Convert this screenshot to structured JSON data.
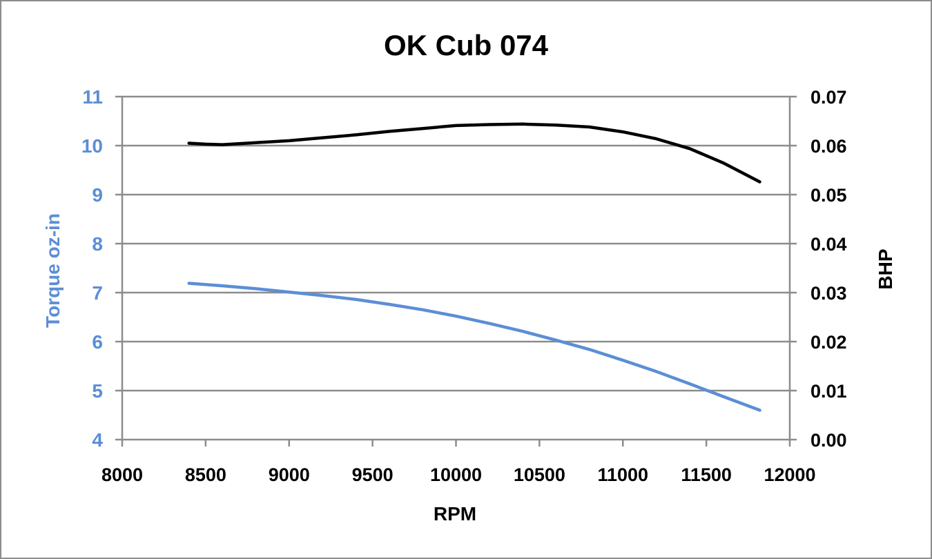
{
  "chart_data": {
    "type": "line",
    "title": "OK Cub 074",
    "xlabel": "RPM",
    "ylabel_left": "Torque oz-in",
    "ylabel_right": "BHP",
    "xlim": [
      8000,
      12000
    ],
    "ylim_left": [
      4,
      11
    ],
    "ylim_right": [
      0,
      0.07
    ],
    "x_ticks": [
      "8000",
      "8500",
      "9000",
      "9500",
      "10000",
      "10500",
      "11000",
      "11500",
      "12000"
    ],
    "y_left_ticks": [
      "4",
      "5",
      "6",
      "7",
      "8",
      "9",
      "10",
      "11"
    ],
    "y_right_ticks": [
      "0.00",
      "0.01",
      "0.02",
      "0.03",
      "0.04",
      "0.05",
      "0.06",
      "0.07"
    ],
    "grid": true,
    "legend": "none",
    "series": [
      {
        "axis": "left",
        "color": "#5b8ed6",
        "x": [
          8400,
          8600,
          8800,
          9000,
          9200,
          9400,
          9600,
          9800,
          10000,
          10200,
          10400,
          10600,
          10800,
          11000,
          11200,
          11400,
          11600,
          11820
        ],
        "y": [
          7.19,
          7.14,
          7.08,
          7.01,
          6.94,
          6.86,
          6.76,
          6.65,
          6.52,
          6.37,
          6.21,
          6.03,
          5.84,
          5.62,
          5.39,
          5.14,
          4.88,
          4.6
        ]
      },
      {
        "axis": "right",
        "color": "#000000",
        "x": [
          8400,
          8500,
          8600,
          8800,
          9000,
          9200,
          9400,
          9600,
          9800,
          10000,
          10200,
          10400,
          10600,
          10800,
          11000,
          11200,
          11400,
          11600,
          11820
        ],
        "y": [
          0.0605,
          0.0603,
          0.0602,
          0.0606,
          0.061,
          0.0616,
          0.0622,
          0.0629,
          0.0635,
          0.0641,
          0.0643,
          0.0644,
          0.0642,
          0.0638,
          0.0628,
          0.0614,
          0.0594,
          0.0565,
          0.0526
        ]
      }
    ]
  }
}
